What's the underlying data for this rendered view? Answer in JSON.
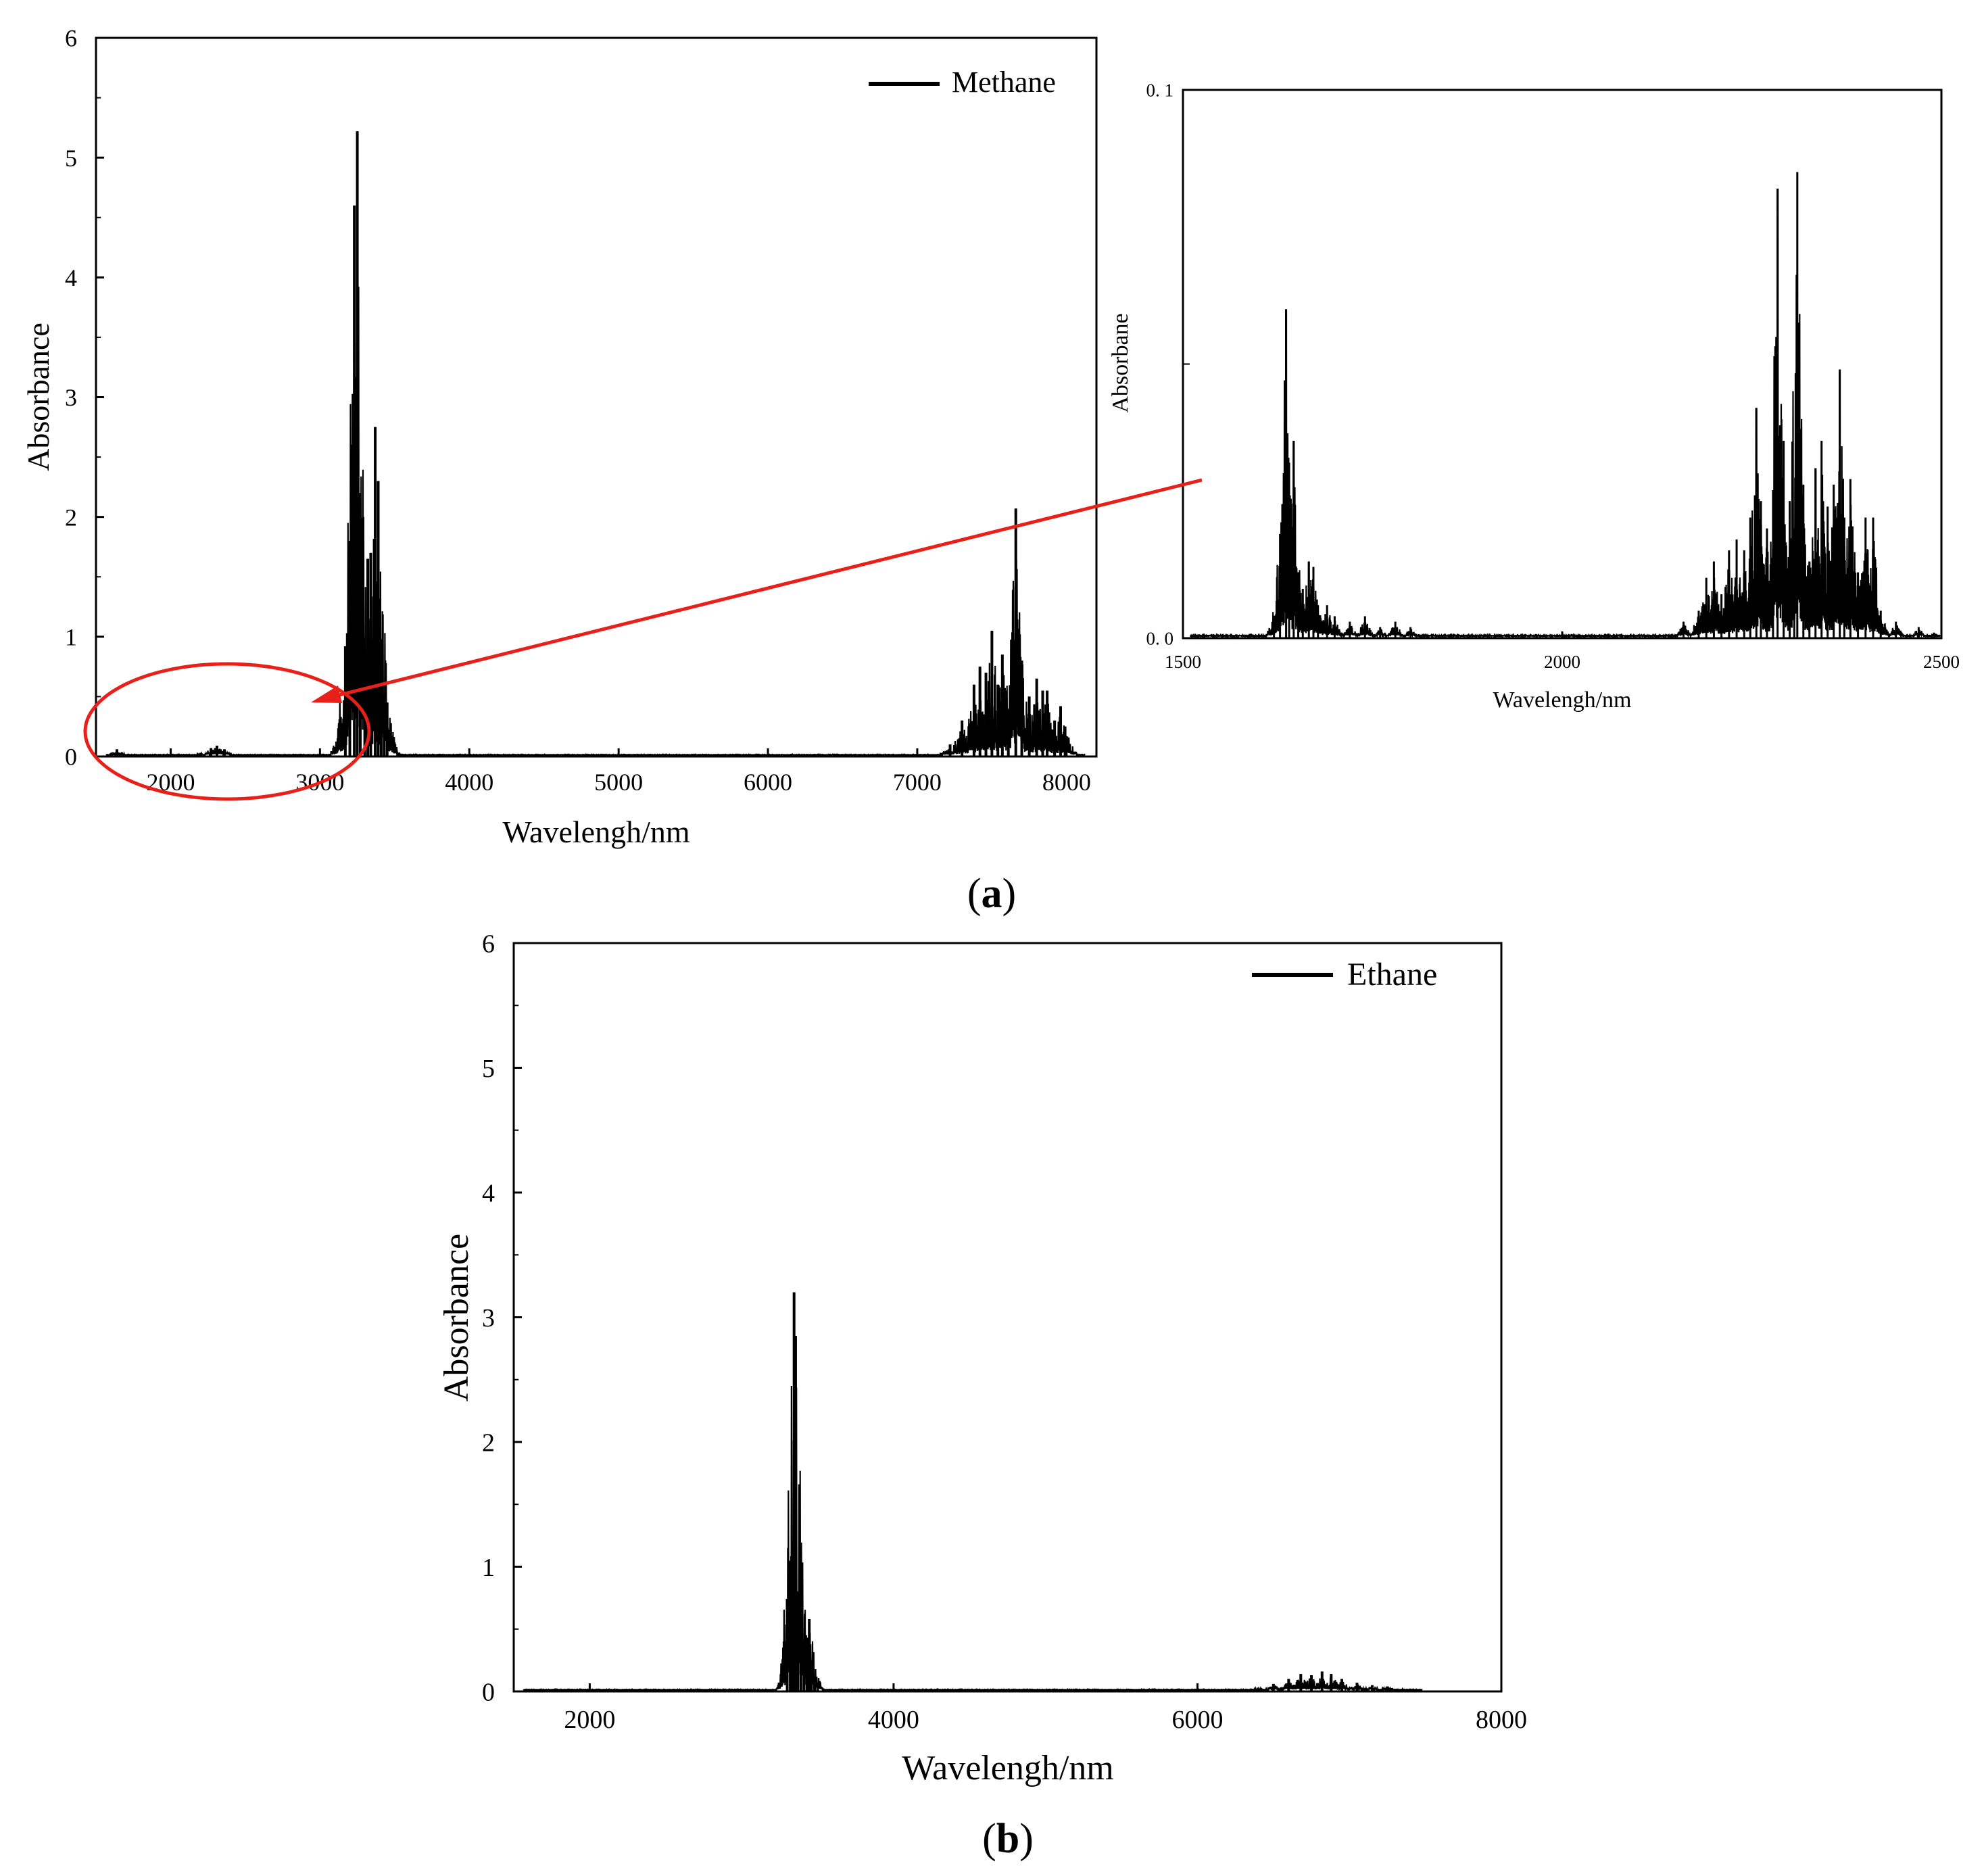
{
  "chart_data": [
    {
      "id": "a-main",
      "type": "line",
      "panel_label": "a",
      "xlabel": "Wavelengh/nm",
      "ylabel": "Absorbance",
      "xlim": [
        1500,
        8200
      ],
      "ylim": [
        0,
        6
      ],
      "xticks": [
        2000,
        3000,
        4000,
        5000,
        6000,
        7000,
        8000
      ],
      "yticks": [
        0,
        1,
        2,
        3,
        4,
        5,
        6
      ],
      "grid": false,
      "legend": "top-right",
      "series": [
        {
          "name": "Methane",
          "color": "#000000",
          "peaks": [
            {
              "x": 1640,
              "y": 0.06
            },
            {
              "x": 1660,
              "y": 0.03
            },
            {
              "x": 2200,
              "y": 0.03
            },
            {
              "x": 2270,
              "y": 0.07
            },
            {
              "x": 2310,
              "y": 0.09
            },
            {
              "x": 2360,
              "y": 0.06
            },
            {
              "x": 3170,
              "y": 0.92
            },
            {
              "x": 3200,
              "y": 1.8
            },
            {
              "x": 3230,
              "y": 4.6
            },
            {
              "x": 3250,
              "y": 5.22
            },
            {
              "x": 3270,
              "y": 2.2
            },
            {
              "x": 3300,
              "y": 0.8
            },
            {
              "x": 3320,
              "y": 1.65
            },
            {
              "x": 3340,
              "y": 1.7
            },
            {
              "x": 3370,
              "y": 2.75
            },
            {
              "x": 3390,
              "y": 2.3
            },
            {
              "x": 3410,
              "y": 0.85
            },
            {
              "x": 3430,
              "y": 0.5
            },
            {
              "x": 3450,
              "y": 0.45
            },
            {
              "x": 3520,
              "y": 0.03
            },
            {
              "x": 7220,
              "y": 0.1
            },
            {
              "x": 7300,
              "y": 0.3
            },
            {
              "x": 7380,
              "y": 0.6
            },
            {
              "x": 7420,
              "y": 0.75
            },
            {
              "x": 7460,
              "y": 0.7
            },
            {
              "x": 7500,
              "y": 1.05
            },
            {
              "x": 7540,
              "y": 0.6
            },
            {
              "x": 7570,
              "y": 0.85
            },
            {
              "x": 7610,
              "y": 0.3
            },
            {
              "x": 7660,
              "y": 2.07
            },
            {
              "x": 7700,
              "y": 0.8
            },
            {
              "x": 7750,
              "y": 0.5
            },
            {
              "x": 7800,
              "y": 0.65
            },
            {
              "x": 7840,
              "y": 0.55
            },
            {
              "x": 7870,
              "y": 0.55
            },
            {
              "x": 7920,
              "y": 0.3
            },
            {
              "x": 7960,
              "y": 0.42
            },
            {
              "x": 7990,
              "y": 0.25
            }
          ]
        }
      ]
    },
    {
      "id": "a-inset",
      "type": "line",
      "panel_label": "",
      "xlabel": "Wavelengh/nm",
      "ylabel": "Absorbane",
      "xlim": [
        1500,
        2500
      ],
      "ylim": [
        0,
        0.1
      ],
      "xticks": [
        1500,
        2000,
        2500
      ],
      "yticks": [
        0.0,
        0.1
      ],
      "ytick_labels": [
        "0. 0",
        "0. 1"
      ],
      "grid": false,
      "series": [
        {
          "name": "",
          "color": "#000000",
          "peaks": [
            {
              "x": 1620,
              "y": 0.004
            },
            {
              "x": 1628,
              "y": 0.019
            },
            {
              "x": 1636,
              "y": 0.06
            },
            {
              "x": 1640,
              "y": 0.032
            },
            {
              "x": 1646,
              "y": 0.036
            },
            {
              "x": 1652,
              "y": 0.012
            },
            {
              "x": 1658,
              "y": 0.009
            },
            {
              "x": 1666,
              "y": 0.014
            },
            {
              "x": 1672,
              "y": 0.013
            },
            {
              "x": 1678,
              "y": 0.006
            },
            {
              "x": 1690,
              "y": 0.006
            },
            {
              "x": 1700,
              "y": 0.004
            },
            {
              "x": 1720,
              "y": 0.003
            },
            {
              "x": 1740,
              "y": 0.004
            },
            {
              "x": 1760,
              "y": 0.002
            },
            {
              "x": 1780,
              "y": 0.003
            },
            {
              "x": 1800,
              "y": 0.002
            },
            {
              "x": 2160,
              "y": 0.003
            },
            {
              "x": 2180,
              "y": 0.005
            },
            {
              "x": 2190,
              "y": 0.011
            },
            {
              "x": 2200,
              "y": 0.014
            },
            {
              "x": 2210,
              "y": 0.008
            },
            {
              "x": 2220,
              "y": 0.016
            },
            {
              "x": 2230,
              "y": 0.018
            },
            {
              "x": 2240,
              "y": 0.016
            },
            {
              "x": 2248,
              "y": 0.022
            },
            {
              "x": 2256,
              "y": 0.042
            },
            {
              "x": 2262,
              "y": 0.025
            },
            {
              "x": 2270,
              "y": 0.02
            },
            {
              "x": 2278,
              "y": 0.027
            },
            {
              "x": 2284,
              "y": 0.082
            },
            {
              "x": 2292,
              "y": 0.036
            },
            {
              "x": 2300,
              "y": 0.025
            },
            {
              "x": 2306,
              "y": 0.02
            },
            {
              "x": 2310,
              "y": 0.085
            },
            {
              "x": 2318,
              "y": 0.028
            },
            {
              "x": 2326,
              "y": 0.014
            },
            {
              "x": 2334,
              "y": 0.031
            },
            {
              "x": 2342,
              "y": 0.036
            },
            {
              "x": 2350,
              "y": 0.024
            },
            {
              "x": 2358,
              "y": 0.028
            },
            {
              "x": 2366,
              "y": 0.049
            },
            {
              "x": 2372,
              "y": 0.022
            },
            {
              "x": 2380,
              "y": 0.029
            },
            {
              "x": 2390,
              "y": 0.012
            },
            {
              "x": 2400,
              "y": 0.022
            },
            {
              "x": 2410,
              "y": 0.022
            },
            {
              "x": 2420,
              "y": 0.005
            },
            {
              "x": 2440,
              "y": 0.003
            },
            {
              "x": 2470,
              "y": 0.002
            },
            {
              "x": 2490,
              "y": 0.001
            }
          ]
        }
      ]
    },
    {
      "id": "b",
      "type": "line",
      "panel_label": "b",
      "xlabel": "Wavelengh/nm",
      "ylabel": "Absorbance",
      "xlim": [
        1500,
        8000
      ],
      "ylim": [
        0,
        6
      ],
      "xticks": [
        2000,
        4000,
        6000,
        8000
      ],
      "yticks": [
        0,
        1,
        2,
        3,
        4,
        5,
        6
      ],
      "grid": false,
      "legend": "top-right",
      "series": [
        {
          "name": "Ethane",
          "color": "#000000",
          "peaks": [
            {
              "x": 3300,
              "y": 0.25
            },
            {
              "x": 3320,
              "y": 0.55
            },
            {
              "x": 3335,
              "y": 0.9
            },
            {
              "x": 3345,
              "y": 3.2
            },
            {
              "x": 3355,
              "y": 2.85
            },
            {
              "x": 3370,
              "y": 0.8
            },
            {
              "x": 3390,
              "y": 0.5
            },
            {
              "x": 3410,
              "y": 0.4
            },
            {
              "x": 3430,
              "y": 0.3
            },
            {
              "x": 3445,
              "y": 0.58
            },
            {
              "x": 3460,
              "y": 0.25
            },
            {
              "x": 3480,
              "y": 0.12
            },
            {
              "x": 3500,
              "y": 0.05
            },
            {
              "x": 6400,
              "y": 0.03
            },
            {
              "x": 6500,
              "y": 0.06
            },
            {
              "x": 6600,
              "y": 0.1
            },
            {
              "x": 6680,
              "y": 0.14
            },
            {
              "x": 6750,
              "y": 0.13
            },
            {
              "x": 6820,
              "y": 0.16
            },
            {
              "x": 6880,
              "y": 0.14
            },
            {
              "x": 6950,
              "y": 0.1
            },
            {
              "x": 7050,
              "y": 0.07
            },
            {
              "x": 7150,
              "y": 0.05
            },
            {
              "x": 7250,
              "y": 0.04
            },
            {
              "x": 7350,
              "y": 0.02
            }
          ]
        }
      ]
    }
  ],
  "annotation_color": "#e8201a"
}
